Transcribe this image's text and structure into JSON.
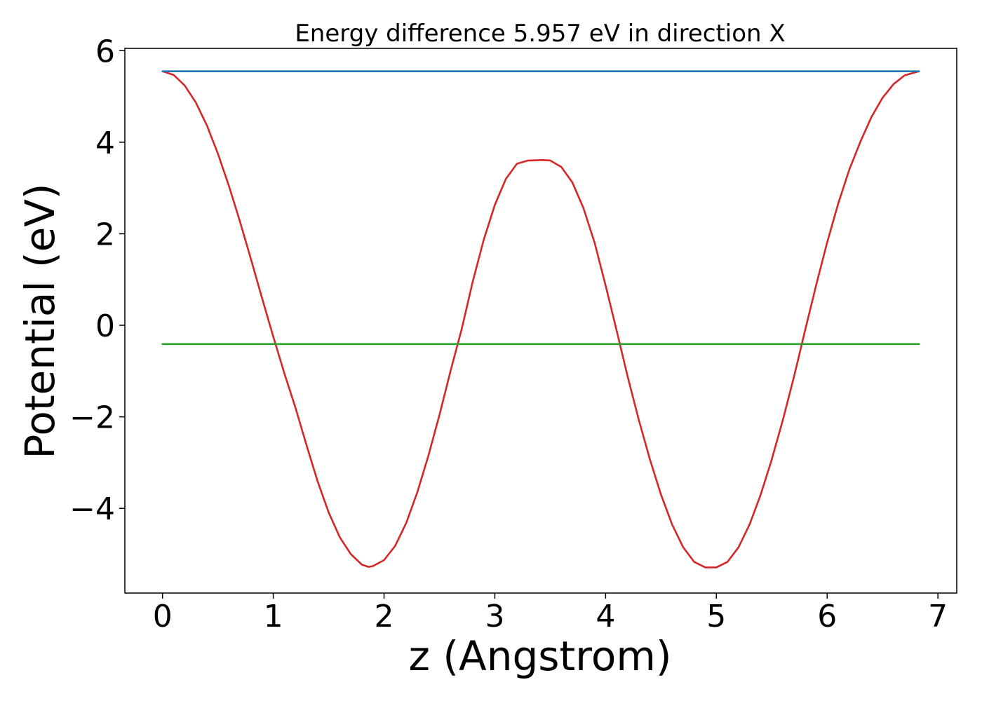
{
  "chart_data": {
    "type": "line",
    "title": "Energy difference 5.957 eV in direction X",
    "xlabel": "z (Angstrom)",
    "ylabel": "Potential (eV)",
    "xlim": [
      -0.34,
      7.17
    ],
    "ylim": [
      -5.85,
      6.05
    ],
    "grid": false,
    "x_ticks": [
      0,
      1,
      2,
      3,
      4,
      5,
      6,
      7
    ],
    "x_tick_labels": [
      "0",
      "1",
      "2",
      "3",
      "4",
      "5",
      "6",
      "7"
    ],
    "y_ticks": [
      -4,
      -2,
      0,
      2,
      4,
      6
    ],
    "y_tick_labels": [
      "−4",
      "−2",
      "0",
      "2",
      "4",
      "6"
    ],
    "colors": {
      "potential": "#d62728",
      "vacuum": "#1f77b4",
      "fermi": "#2ca02c"
    },
    "series": [
      {
        "color": "#d62728",
        "x": [
          0.0,
          0.1,
          0.2,
          0.3,
          0.4,
          0.5,
          0.6,
          0.7,
          0.8,
          0.9,
          1.0,
          1.1,
          1.2,
          1.3,
          1.4,
          1.5,
          1.6,
          1.7,
          1.8,
          1.86,
          1.9,
          2.0,
          2.1,
          2.2,
          2.3,
          2.4,
          2.5,
          2.6,
          2.7,
          2.8,
          2.9,
          3.0,
          3.1,
          3.2,
          3.3,
          3.43,
          3.5,
          3.6,
          3.7,
          3.8,
          3.9,
          4.0,
          4.1,
          4.2,
          4.3,
          4.4,
          4.5,
          4.6,
          4.7,
          4.8,
          4.9,
          5.0,
          5.1,
          5.2,
          5.3,
          5.4,
          5.5,
          5.6,
          5.7,
          5.8,
          5.9,
          6.0,
          6.1,
          6.2,
          6.3,
          6.4,
          6.5,
          6.6,
          6.7,
          6.83
        ],
        "y": [
          5.55,
          5.47,
          5.24,
          4.87,
          4.37,
          3.75,
          3.04,
          2.26,
          1.43,
          0.58,
          -0.25,
          -1.05,
          -1.8,
          -2.62,
          -3.41,
          -4.09,
          -4.63,
          -5.0,
          -5.23,
          -5.28,
          -5.26,
          -5.13,
          -4.82,
          -4.32,
          -3.65,
          -2.85,
          -1.96,
          -1.0,
          -0.09,
          0.95,
          1.87,
          2.63,
          3.2,
          3.53,
          3.6,
          3.61,
          3.6,
          3.46,
          3.12,
          2.56,
          1.81,
          0.87,
          -0.12,
          -1.13,
          -2.07,
          -2.93,
          -3.7,
          -4.35,
          -4.85,
          -5.17,
          -5.29,
          -5.29,
          -5.17,
          -4.85,
          -4.35,
          -3.7,
          -2.93,
          -2.07,
          -1.13,
          -0.12,
          0.87,
          1.81,
          2.66,
          3.4,
          4.01,
          4.55,
          4.97,
          5.27,
          5.46,
          5.55
        ]
      },
      {
        "color": "#1f77b4",
        "x": [
          0.0,
          6.83
        ],
        "y": [
          5.55,
          5.55
        ]
      },
      {
        "color": "#2ca02c",
        "x": [
          0.0,
          6.83
        ],
        "y": [
          -0.41,
          -0.41
        ]
      }
    ]
  }
}
